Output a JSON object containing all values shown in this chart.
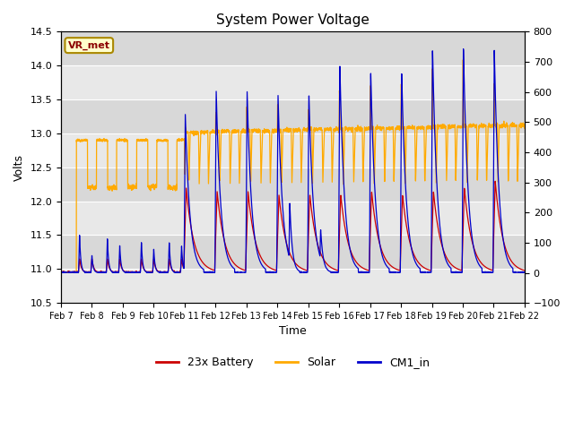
{
  "title": "System Power Voltage",
  "xlabel": "Time",
  "ylabel": "Volts",
  "xlim": [
    0,
    15
  ],
  "ylim_left": [
    10.5,
    14.5
  ],
  "ylim_right": [
    -100,
    800
  ],
  "yticks_left": [
    10.5,
    11.0,
    11.5,
    12.0,
    12.5,
    13.0,
    13.5,
    14.0,
    14.5
  ],
  "yticks_right": [
    -100,
    0,
    100,
    200,
    300,
    400,
    500,
    600,
    700,
    800
  ],
  "xtick_labels": [
    "Feb 7",
    "Feb 8",
    "Feb 9",
    "Feb 10",
    "Feb 11",
    "Feb 12",
    "Feb 13",
    "Feb 14",
    "Feb 15",
    "Feb 16",
    "Feb 17",
    "Feb 18",
    "Feb 19",
    "Feb 20",
    "Feb 21",
    "Feb 22"
  ],
  "color_battery": "#cc0000",
  "color_solar": "#ffaa00",
  "color_cm1": "#0000cc",
  "bg_outer": "#d8d8d8",
  "bg_band_light": "#e8e8e8",
  "bg_band_dark": "#d0d0d0",
  "annotation_text": "VR_met",
  "legend_labels": [
    "23x Battery",
    "Solar",
    "CM1_in"
  ]
}
